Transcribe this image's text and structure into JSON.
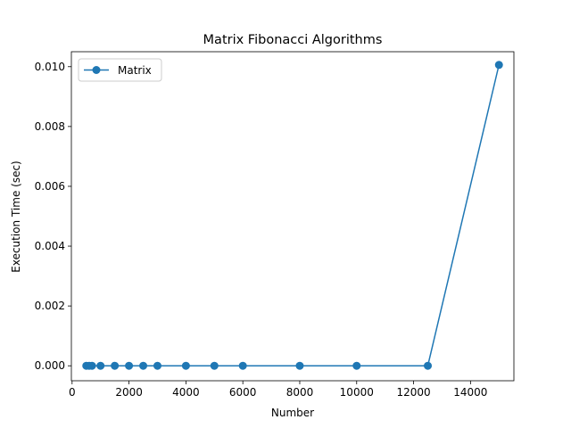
{
  "chart_data": {
    "type": "line",
    "title": "Matrix Fibonacci Algorithms",
    "xlabel": "Number",
    "ylabel": "Execution Time (sec)",
    "xlim": [
      -25,
      15525
    ],
    "ylim": [
      -0.0005,
      0.0105
    ],
    "x_ticks": [
      0,
      2000,
      4000,
      6000,
      8000,
      10000,
      12000,
      14000
    ],
    "x_tick_labels": [
      "0",
      "2000",
      "4000",
      "6000",
      "8000",
      "10000",
      "12000",
      "14000"
    ],
    "y_ticks": [
      0,
      0.002,
      0.004,
      0.006,
      0.008,
      0.01
    ],
    "y_tick_labels": [
      "0.000",
      "0.002",
      "0.004",
      "0.006",
      "0.008",
      "0.010"
    ],
    "grid": false,
    "legend": {
      "placement": "top-left",
      "entries": [
        "Matrix"
      ]
    },
    "series": [
      {
        "name": "Matrix",
        "color": "#1f77b4",
        "marker": "circle",
        "x": [
          500,
          600,
          700,
          1000,
          1500,
          2000,
          2500,
          3000,
          4000,
          5000,
          6000,
          8000,
          10000,
          12500,
          15000
        ],
        "y": [
          0,
          0,
          0,
          0,
          0,
          0,
          0,
          0,
          0,
          0,
          0,
          0,
          0,
          0,
          0.01006
        ]
      }
    ]
  }
}
